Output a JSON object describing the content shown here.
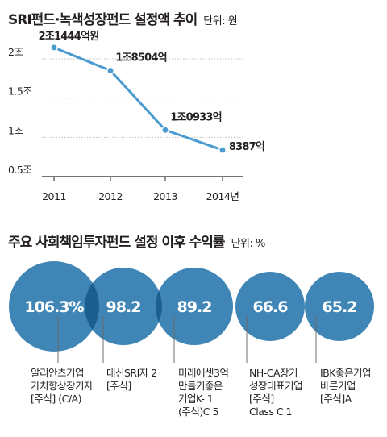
{
  "chart_data": [
    {
      "type": "line",
      "title": "SRI펀드·녹색성장펀드 설정액 추이",
      "unit_label": "단위: 원",
      "categories": [
        "2011",
        "2012",
        "2013",
        "2014년"
      ],
      "series": [
        {
          "values": [
            2.1444,
            1.8504,
            1.0933,
            0.8387
          ]
        }
      ],
      "data_labels": [
        "2조1444억원",
        "1조8504억",
        "1조0933억",
        "8387억"
      ],
      "y_tick_labels": [
        "2조",
        "1.5조",
        "1조",
        "0.5조"
      ],
      "y_ticks": [
        2,
        1.5,
        1,
        0.5
      ],
      "ylim": [
        0.5,
        2.0
      ],
      "color": "#4b9bd1"
    },
    {
      "type": "bubble",
      "title": "주요 사회책임투자펀드 설정 이후 수익률",
      "unit_label": "단위: %",
      "values": [
        106.3,
        98.2,
        89.2,
        66.6,
        65.2
      ],
      "value_labels": [
        "106.3%",
        "98.2",
        "89.2",
        "66.6",
        "65.2"
      ],
      "names": [
        [
          "알리안츠기업",
          "가치향상장기자",
          "[주식] (C/A)"
        ],
        [
          "대신SRI자 2",
          "[주식]"
        ],
        [
          "미래에셋3억",
          "만들기좋은",
          "기업K- 1",
          "(주식)C 5"
        ],
        [
          "NH-CA장기",
          "성장대표기업",
          "[주식]",
          "Class C 1"
        ],
        [
          "IBK좋은기업",
          "바른기업",
          "[주식]A"
        ]
      ],
      "color": "#3f86b6",
      "overlap_color": "#1b5f8f"
    }
  ]
}
